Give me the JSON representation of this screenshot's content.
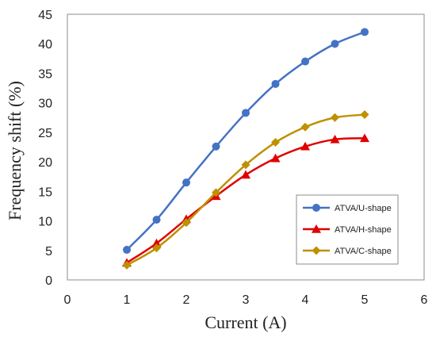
{
  "chart_data": {
    "type": "line",
    "title": "",
    "xlabel": "Current (A)",
    "ylabel": "Frequency shift (%)",
    "xlim": [
      0,
      6
    ],
    "ylim": [
      0,
      45
    ],
    "xticks": [
      0,
      1,
      2,
      3,
      4,
      5,
      6
    ],
    "yticks": [
      0,
      5,
      10,
      15,
      20,
      25,
      30,
      35,
      40,
      45
    ],
    "grid": false,
    "legend_position": "bottom-right",
    "x": [
      1,
      1.5,
      2,
      2.5,
      3,
      3.5,
      4,
      4.5,
      5
    ],
    "series": [
      {
        "name": "ATVA/U-shape",
        "color": "#4472c4",
        "marker": "circle",
        "values": [
          5.1,
          10.2,
          16.5,
          22.6,
          28.3,
          33.2,
          37.0,
          40.0,
          42.0
        ]
      },
      {
        "name": "ATVA/H-shape",
        "color": "#e00000",
        "marker": "triangle",
        "values": [
          2.9,
          6.2,
          10.3,
          14.2,
          17.8,
          20.6,
          22.6,
          23.8,
          24.0
        ]
      },
      {
        "name": "ATVA/C-shape",
        "color": "#bf9000",
        "marker": "diamond",
        "values": [
          2.5,
          5.4,
          9.7,
          14.8,
          19.5,
          23.3,
          25.9,
          27.5,
          28.0
        ]
      }
    ]
  }
}
